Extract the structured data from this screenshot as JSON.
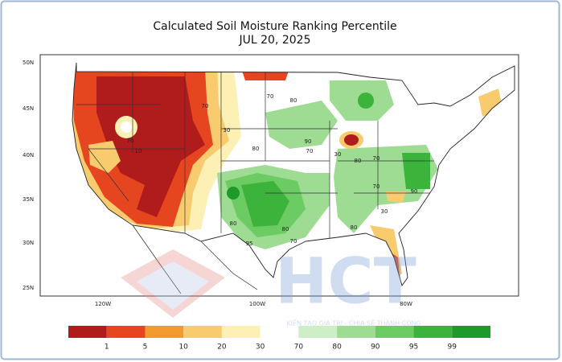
{
  "title": "Calculated Soil Moisture Ranking Percentile",
  "subtitle": "JUL 20, 2025",
  "latitude_labels": [
    "50N",
    "45N",
    "40N",
    "35N",
    "30N",
    "25N"
  ],
  "longitude_labels": [
    "120W",
    "100W",
    "80W"
  ],
  "legend": {
    "colors": [
      "#b01c1c",
      "#e6461f",
      "#f39a2e",
      "#f8cc6e",
      "#fcf0b4",
      "#ffffff",
      "#cdeec6",
      "#9ddc92",
      "#6ccb62",
      "#3cb43c",
      "#1e9a2a"
    ],
    "labels": [
      "1",
      "5",
      "10",
      "20",
      "30",
      "70",
      "80",
      "90",
      "95",
      "99"
    ]
  },
  "contour_labels": [
    "70",
    "30",
    "70",
    "10",
    "30",
    "70",
    "80",
    "90",
    "70",
    "80",
    "80",
    "95",
    "80",
    "70",
    "30",
    "80",
    "70",
    "80",
    "90",
    "70"
  ],
  "watermark": {
    "logo": "HCT",
    "slogan": "KIẾN TẠO GIÁ TRỊ - CHIA SẺ THÀNH CÔNG"
  }
}
